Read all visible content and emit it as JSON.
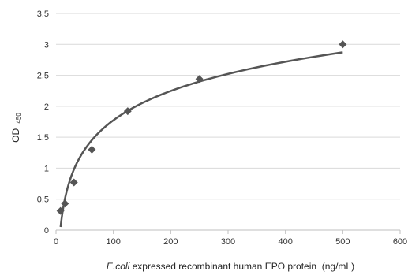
{
  "chart_data": {
    "type": "scatter",
    "title": "",
    "xlabel_italic": "E.coli",
    "xlabel_rest": " expressed recombinant human EPO protein  (ng/mL)",
    "ylabel_main": "OD",
    "ylabel_sub": "450",
    "xlim": [
      0,
      600
    ],
    "ylim": [
      0,
      3.5
    ],
    "x_ticks": [
      0,
      100,
      200,
      300,
      400,
      500,
      600
    ],
    "y_ticks": [
      0,
      0.5,
      1,
      1.5,
      2,
      2.5,
      3,
      3.5
    ],
    "x_tick_labels": [
      "0",
      "100",
      "200",
      "300",
      "400",
      "500",
      "600"
    ],
    "y_tick_labels": [
      "0",
      "0.5",
      "1",
      "1.5",
      "2",
      "2.5",
      "3",
      "3.5"
    ],
    "grid": "horizontal",
    "legend": "none",
    "series": [
      {
        "marker": "diamond",
        "color": "#555555",
        "x": [
          7.8,
          15.6,
          31.25,
          62.5,
          125,
          250,
          500
        ],
        "y": [
          0.31,
          0.43,
          0.77,
          1.3,
          1.92,
          2.44,
          3.0
        ]
      }
    ],
    "trendline": {
      "type": "logarithmic",
      "color": "#555555",
      "x_start": 8,
      "x_end": 500
    }
  }
}
